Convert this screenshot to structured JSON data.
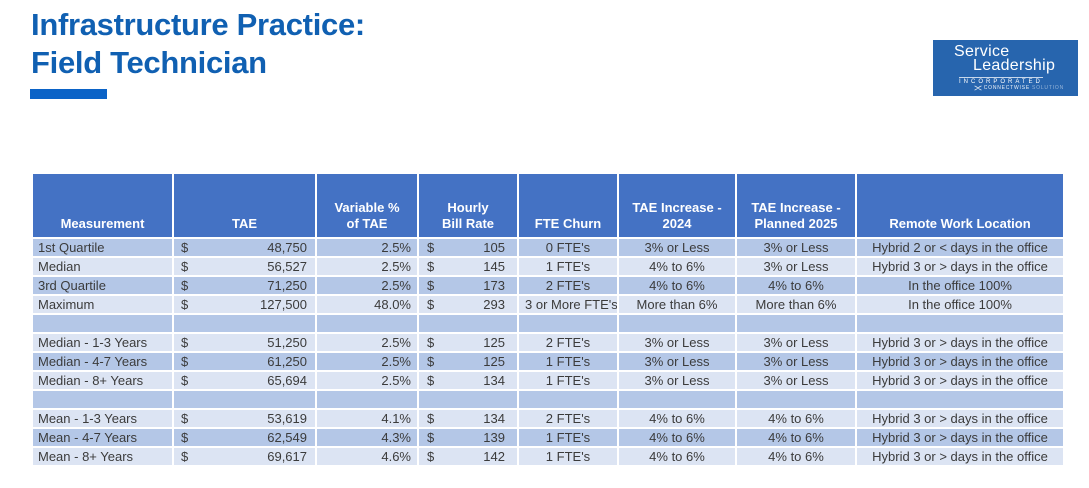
{
  "title": {
    "line1": "Infrastructure Practice:",
    "line2": "Field Technician",
    "color": "#1060B2",
    "underline_color": "#0B63C7"
  },
  "logo": {
    "word1": "Service",
    "word2": "Leadership",
    "word3": "INCORPORATED",
    "word4": "CONNECTWISE",
    "word5": "SOLUTION",
    "background": "#2765AE"
  },
  "table": {
    "currency_symbol": "$",
    "header_bg": "#4472C4",
    "stripe_dark": "#B4C7E7",
    "stripe_light": "#DCE4F3",
    "columns": [
      {
        "key": "measurement",
        "label": "Measurement",
        "currency": false
      },
      {
        "key": "tae",
        "label": "TAE",
        "currency": true
      },
      {
        "key": "variable-pct-of-tae",
        "label": "Variable %\nof TAE",
        "currency": false
      },
      {
        "key": "hourly-bill-rate",
        "label": "Hourly\nBill Rate",
        "currency": true
      },
      {
        "key": "fte-churn",
        "label": "FTE Churn",
        "currency": false
      },
      {
        "key": "tae-increase-2024",
        "label": "TAE Increase -\n2024",
        "currency": false
      },
      {
        "key": "tae-increase-planned-2025",
        "label": "TAE Increase -\nPlanned 2025",
        "currency": false
      },
      {
        "key": "remote-work-location",
        "label": "Remote Work Location",
        "currency": false
      }
    ],
    "rows": [
      {
        "cells": [
          "1st Quartile",
          "48,750",
          "2.5%",
          "105",
          "0 FTE's",
          "3% or Less",
          "3% or Less",
          "Hybrid 2 or < days in the office"
        ]
      },
      {
        "cells": [
          "Median",
          "56,527",
          "2.5%",
          "145",
          "1 FTE's",
          "4% to 6%",
          "3% or Less",
          "Hybrid 3 or > days in the office"
        ]
      },
      {
        "cells": [
          "3rd Quartile",
          "71,250",
          "2.5%",
          "173",
          "2 FTE's",
          "4% to 6%",
          "4% to 6%",
          "In the office 100%"
        ]
      },
      {
        "cells": [
          "Maximum",
          "127,500",
          "48.0%",
          "293",
          "3 or More FTE's",
          "More than 6%",
          "More than 6%",
          "In the office 100%"
        ]
      },
      {
        "cells": [
          "",
          "",
          "",
          "",
          "",
          "",
          "",
          ""
        ]
      },
      {
        "cells": [
          "Median - 1-3 Years",
          "51,250",
          "2.5%",
          "125",
          "2 FTE's",
          "3% or Less",
          "3% or Less",
          "Hybrid 3 or > days in the office"
        ]
      },
      {
        "cells": [
          "Median - 4-7 Years",
          "61,250",
          "2.5%",
          "125",
          "1 FTE's",
          "3% or Less",
          "3% or Less",
          "Hybrid 3 or > days in the office"
        ]
      },
      {
        "cells": [
          "Median - 8+ Years",
          "65,694",
          "2.5%",
          "134",
          "1 FTE's",
          "3% or Less",
          "3% or Less",
          "Hybrid 3 or > days in the office"
        ]
      },
      {
        "cells": [
          "",
          "",
          "",
          "",
          "",
          "",
          "",
          ""
        ]
      },
      {
        "cells": [
          "Mean - 1-3 Years",
          "53,619",
          "4.1%",
          "134",
          "2 FTE's",
          "4% to 6%",
          "4% to 6%",
          "Hybrid 3 or > days in the office"
        ]
      },
      {
        "cells": [
          "Mean - 4-7 Years",
          "62,549",
          "4.3%",
          "139",
          "1 FTE's",
          "4% to 6%",
          "4% to 6%",
          "Hybrid 3 or > days in the office"
        ]
      },
      {
        "cells": [
          "Mean - 8+ Years",
          "69,617",
          "4.6%",
          "142",
          "1 FTE's",
          "4% to 6%",
          "4% to 6%",
          "Hybrid 3 or > days in the office"
        ]
      }
    ]
  }
}
